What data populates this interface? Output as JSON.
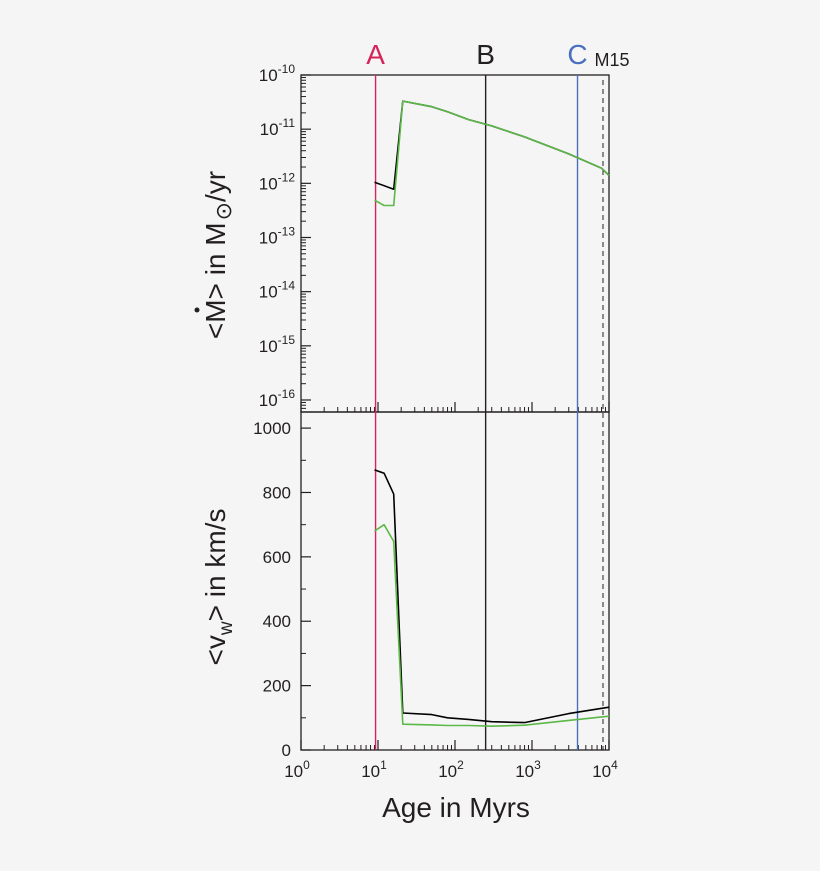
{
  "chart_data": [
    {
      "type": "line",
      "panel": "top",
      "ylabel": "<Ṁ> in M⊙/yr",
      "xscale": "log",
      "yscale": "log",
      "xlim": [
        1,
        10000
      ],
      "ylim": [
        6e-17,
        1e-10
      ],
      "ytick_labels": [
        {
          "base": "10",
          "exp": "-10",
          "value": 1e-10
        },
        {
          "base": "10",
          "exp": "-11",
          "value": 1e-11
        },
        {
          "base": "10",
          "exp": "-12",
          "value": 1e-12
        },
        {
          "base": "10",
          "exp": "-13",
          "value": 1e-13
        },
        {
          "base": "10",
          "exp": "-14",
          "value": 1e-14
        },
        {
          "base": "10",
          "exp": "-15",
          "value": 1e-15
        },
        {
          "base": "10",
          "exp": "-16",
          "value": 1e-16
        }
      ],
      "series": [
        {
          "color": "#000000",
          "x": [
            9,
            16,
            21,
            50,
            80,
            150,
            300,
            800,
            3000,
            8000,
            10000
          ],
          "y": [
            1.05e-12,
            7.8e-13,
            3.3e-11,
            2.6e-11,
            2.1e-11,
            1.5e-11,
            1.15e-11,
            7.2e-12,
            3.5e-12,
            1.9e-12,
            1.4e-12
          ]
        },
        {
          "color": "#5cb847",
          "x": [
            9,
            12,
            16,
            21,
            50,
            80,
            150,
            300,
            800,
            3000,
            8000,
            10000
          ],
          "y": [
            4.9e-13,
            3.9e-13,
            3.9e-13,
            3.3e-11,
            2.6e-11,
            2.1e-11,
            1.5e-11,
            1.15e-11,
            7.2e-12,
            3.5e-12,
            1.9e-12,
            1.4e-12
          ]
        }
      ]
    },
    {
      "type": "line",
      "panel": "bottom",
      "xlabel": "Age in Myrs",
      "ylabel": "<vw> in km/s",
      "xscale": "log",
      "xlim": [
        1,
        10000
      ],
      "ylim": [
        0,
        1050
      ],
      "xtick_labels": [
        {
          "base": "10",
          "exp": "0",
          "value": 1
        },
        {
          "base": "10",
          "exp": "1",
          "value": 10
        },
        {
          "base": "10",
          "exp": "2",
          "value": 100
        },
        {
          "base": "10",
          "exp": "3",
          "value": 1000
        },
        {
          "base": "10",
          "exp": "4",
          "value": 10000
        }
      ],
      "yticks": [
        "0",
        "200",
        "400",
        "600",
        "800",
        "1000"
      ],
      "series": [
        {
          "color": "#000000",
          "x": [
            9,
            12,
            16,
            21,
            50,
            80,
            150,
            300,
            800,
            3000,
            10000
          ],
          "y": [
            870,
            860,
            795,
            115,
            110,
            100,
            95,
            88,
            85,
            113,
            133
          ]
        },
        {
          "color": "#5cb847",
          "x": [
            9,
            12,
            16,
            21,
            50,
            80,
            150,
            300,
            800,
            3000,
            10000
          ],
          "y": [
            680,
            700,
            648,
            80,
            78,
            76,
            76,
            74,
            77,
            92,
            105
          ]
        }
      ]
    }
  ],
  "markers": [
    {
      "label": "A",
      "x": 9.3,
      "color": "#d6235a"
    },
    {
      "label": "B",
      "x": 250,
      "color": "#231f20"
    },
    {
      "label": "C",
      "x": 3900,
      "color": "#4a6fbf"
    }
  ],
  "model_label": "M15",
  "axis_text": {
    "top_ylabel_lt": "<",
    "top_ylabel_sym": "M",
    "top_ylabel_rest": "> in M",
    "top_ylabel_unit": "/yr",
    "bottom_ylabel_open": "<v",
    "bottom_ylabel_sub": "w",
    "bottom_ylabel_close": "> in km/s",
    "xlabel": "Age in Myrs"
  }
}
